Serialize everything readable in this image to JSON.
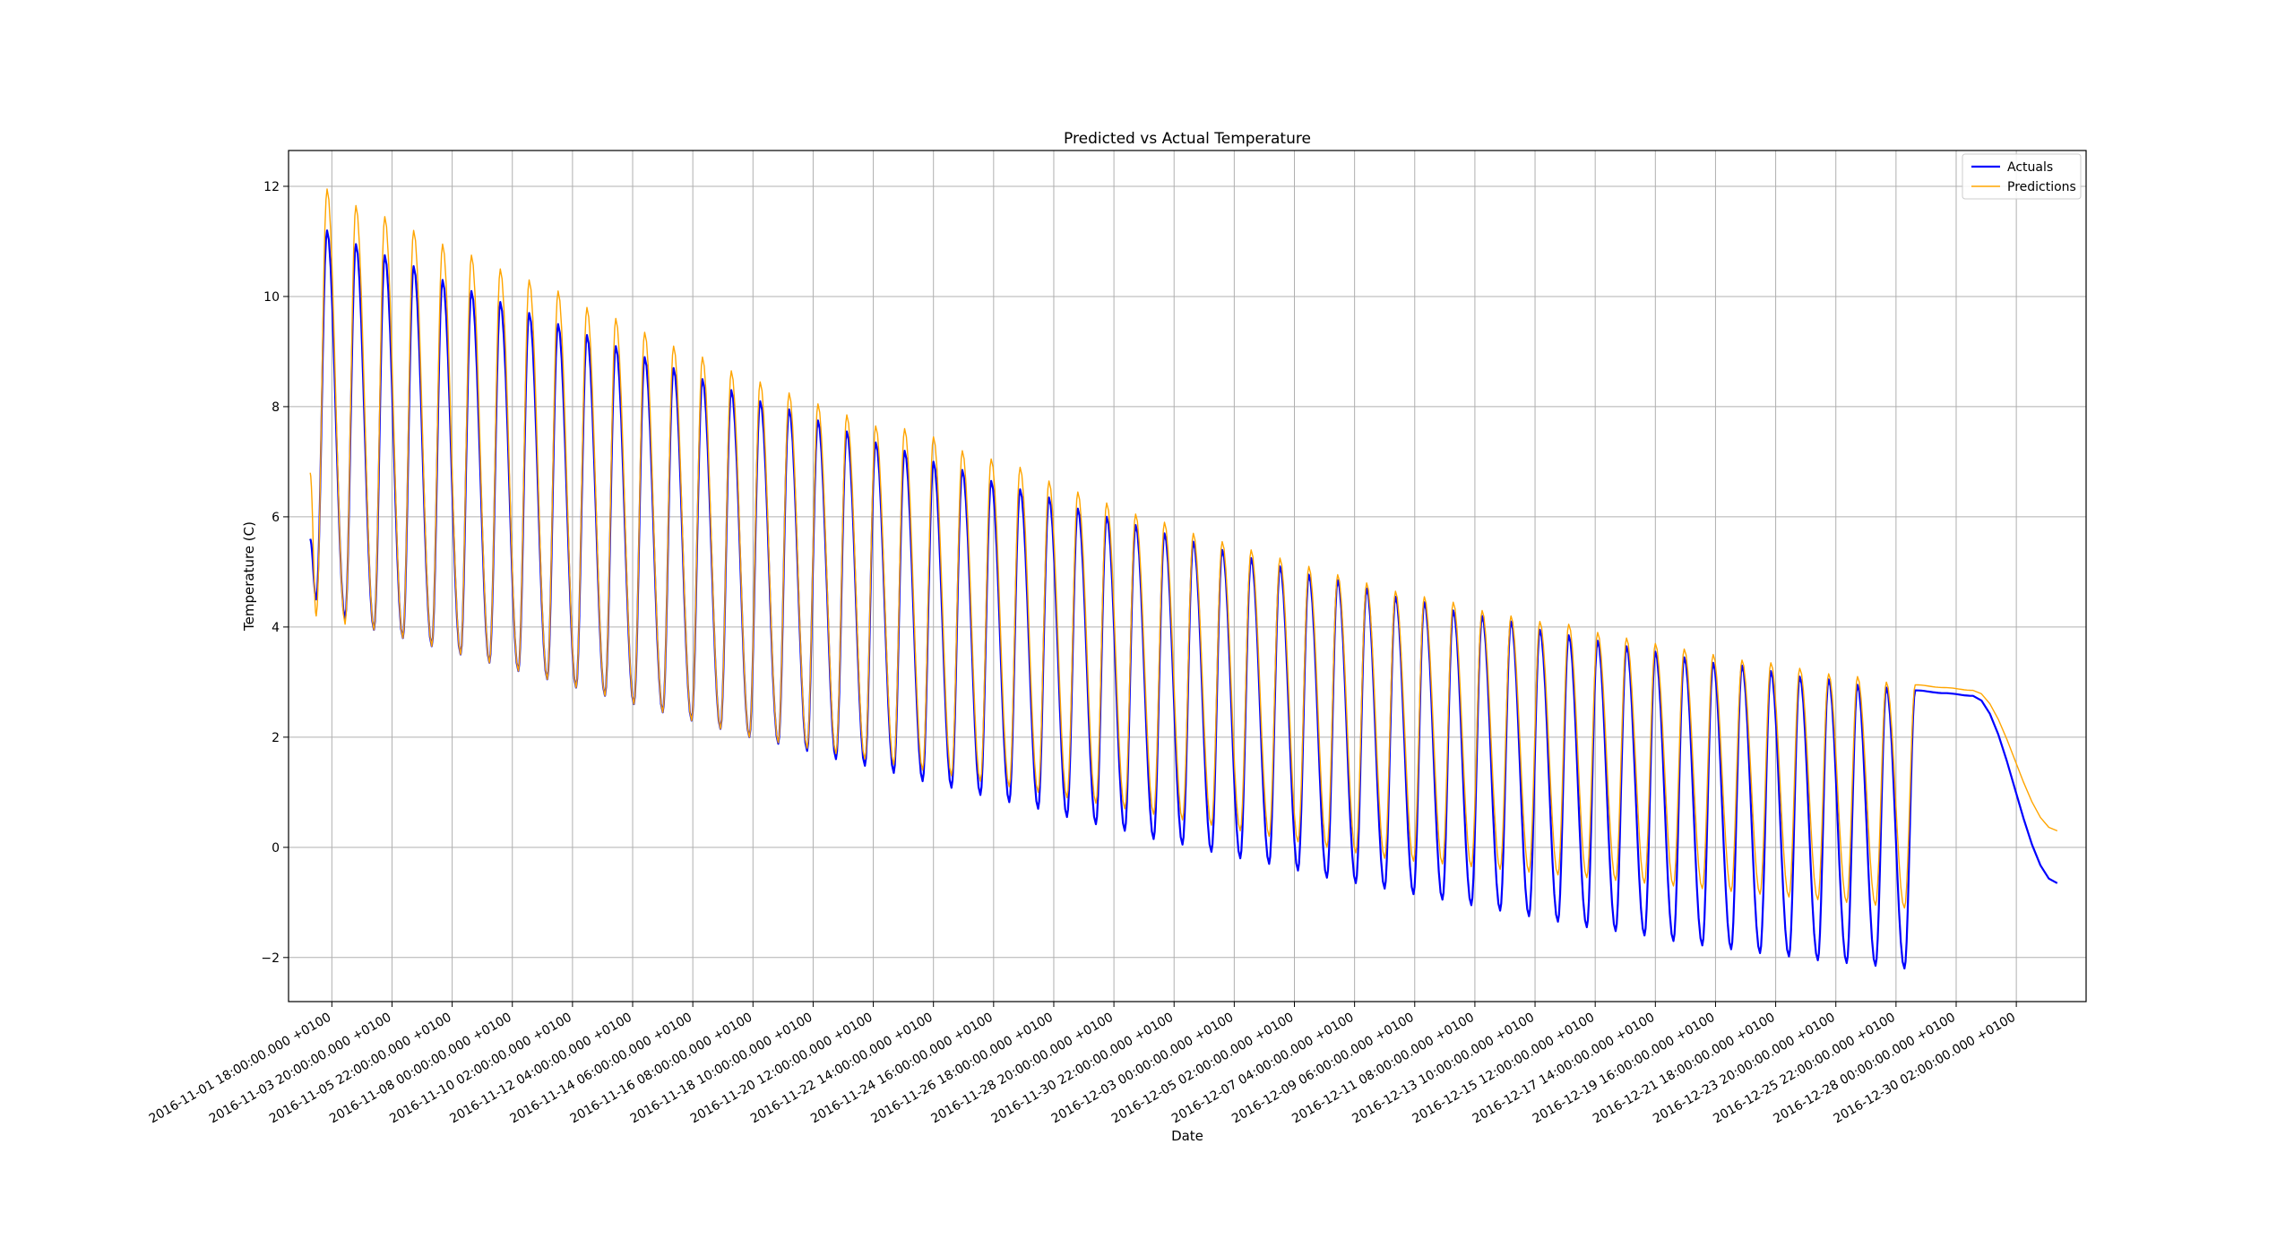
{
  "chart_data": {
    "type": "line",
    "title": "Predicted vs Actual Temperature",
    "xlabel": "Date",
    "ylabel": "Temperature (C)",
    "ylim": [
      -2.8,
      12.65
    ],
    "yticks": [
      -2,
      0,
      2,
      4,
      6,
      8,
      10,
      12
    ],
    "grid": true,
    "legend": "top-right",
    "xlim": [
      "2016-10-31 06:00",
      "2017-01-01 12:00"
    ],
    "x_start": "2016-11-01 00:00",
    "x_end": "2016-12-31 12:00",
    "x_ticks": [
      {
        "date": "2016-11-01 18:00",
        "label": "2016-11-01 18:00:00.000 +0100"
      },
      {
        "date": "2016-11-03 20:00",
        "label": "2016-11-03 20:00:00.000 +0100"
      },
      {
        "date": "2016-11-05 22:00",
        "label": "2016-11-05 22:00:00.000 +0100"
      },
      {
        "date": "2016-11-08 00:00",
        "label": "2016-11-08 00:00:00.000 +0100"
      },
      {
        "date": "2016-11-10 02:00",
        "label": "2016-11-10 02:00:00.000 +0100"
      },
      {
        "date": "2016-11-12 04:00",
        "label": "2016-11-12 04:00:00.000 +0100"
      },
      {
        "date": "2016-11-14 06:00",
        "label": "2016-11-14 06:00:00.000 +0100"
      },
      {
        "date": "2016-11-16 08:00",
        "label": "2016-11-16 08:00:00.000 +0100"
      },
      {
        "date": "2016-11-18 10:00",
        "label": "2016-11-18 10:00:00.000 +0100"
      },
      {
        "date": "2016-11-20 12:00",
        "label": "2016-11-20 12:00:00.000 +0100"
      },
      {
        "date": "2016-11-22 14:00",
        "label": "2016-11-22 14:00:00.000 +0100"
      },
      {
        "date": "2016-11-24 16:00",
        "label": "2016-11-24 16:00:00.000 +0100"
      },
      {
        "date": "2016-11-26 18:00",
        "label": "2016-11-26 18:00:00.000 +0100"
      },
      {
        "date": "2016-11-28 20:00",
        "label": "2016-11-28 20:00:00.000 +0100"
      },
      {
        "date": "2016-11-30 22:00",
        "label": "2016-11-30 22:00:00.000 +0100"
      },
      {
        "date": "2016-12-03 00:00",
        "label": "2016-12-03 00:00:00.000 +0100"
      },
      {
        "date": "2016-12-05 02:00",
        "label": "2016-12-05 02:00:00.000 +0100"
      },
      {
        "date": "2016-12-07 04:00",
        "label": "2016-12-07 04:00:00.000 +0100"
      },
      {
        "date": "2016-12-09 06:00",
        "label": "2016-12-09 06:00:00.000 +0100"
      },
      {
        "date": "2016-12-11 08:00",
        "label": "2016-12-11 08:00:00.000 +0100"
      },
      {
        "date": "2016-12-13 10:00",
        "label": "2016-12-13 10:00:00.000 +0100"
      },
      {
        "date": "2016-12-15 12:00",
        "label": "2016-12-15 12:00:00.000 +0100"
      },
      {
        "date": "2016-12-17 14:00",
        "label": "2016-12-17 14:00:00.000 +0100"
      },
      {
        "date": "2016-12-19 16:00",
        "label": "2016-12-19 16:00:00.000 +0100"
      },
      {
        "date": "2016-12-21 18:00",
        "label": "2016-12-21 18:00:00.000 +0100"
      },
      {
        "date": "2016-12-23 20:00",
        "label": "2016-12-23 20:00:00.000 +0100"
      },
      {
        "date": "2016-12-25 22:00",
        "label": "2016-12-25 22:00:00.000 +0100"
      },
      {
        "date": "2016-12-28 00:00",
        "label": "2016-12-28 00:00:00.000 +0100"
      },
      {
        "date": "2016-12-30 02:00",
        "label": "2016-12-30 02:00:00.000 +0100"
      }
    ],
    "series": [
      {
        "name": "Actuals",
        "color": "#0000ff",
        "start": 5.6,
        "daily_peaks": [
          11.2,
          10.95,
          10.75,
          10.55,
          10.3,
          10.1,
          9.9,
          9.7,
          9.5,
          9.3,
          9.1,
          8.9,
          8.7,
          8.5,
          8.3,
          8.1,
          7.95,
          7.75,
          7.55,
          7.35,
          7.2,
          7.0,
          6.85,
          6.65,
          6.5,
          6.35,
          6.15,
          6.0,
          5.85,
          5.7,
          5.55,
          5.4,
          5.25,
          5.1,
          4.95,
          4.85,
          4.7,
          4.55,
          4.45,
          4.3,
          4.2,
          4.1,
          3.95,
          3.85,
          3.75,
          3.65,
          3.55,
          3.45,
          3.35,
          3.3,
          3.2,
          3.1,
          3.05,
          2.95,
          2.9,
          2.85,
          2.8,
          2.75
        ],
        "daily_troughs": [
          4.5,
          4.15,
          3.95,
          3.8,
          3.65,
          3.5,
          3.35,
          3.2,
          3.05,
          2.9,
          2.75,
          2.6,
          2.45,
          2.3,
          2.15,
          2.0,
          1.88,
          1.75,
          1.6,
          1.48,
          1.35,
          1.2,
          1.08,
          0.95,
          0.82,
          0.7,
          0.55,
          0.42,
          0.3,
          0.15,
          0.05,
          -0.08,
          -0.2,
          -0.3,
          -0.42,
          -0.55,
          -0.65,
          -0.75,
          -0.85,
          -0.95,
          -1.05,
          -1.15,
          -1.25,
          -1.35,
          -1.45,
          -1.52,
          -1.6,
          -1.7,
          -1.78,
          -1.85,
          -1.92,
          -1.98,
          -2.05,
          -2.1,
          -2.15,
          -2.2
        ],
        "end": -0.65
      },
      {
        "name": "Predictions",
        "color": "#ffa500",
        "start": 6.8,
        "daily_peaks": [
          11.95,
          11.65,
          11.45,
          11.2,
          10.95,
          10.75,
          10.5,
          10.3,
          10.1,
          9.8,
          9.6,
          9.35,
          9.1,
          8.9,
          8.65,
          8.45,
          8.25,
          8.05,
          7.85,
          7.65,
          7.6,
          7.45,
          7.2,
          7.05,
          6.9,
          6.65,
          6.45,
          6.25,
          6.05,
          5.9,
          5.7,
          5.55,
          5.4,
          5.25,
          5.1,
          4.95,
          4.8,
          4.65,
          4.55,
          4.45,
          4.3,
          4.2,
          4.1,
          4.05,
          3.9,
          3.8,
          3.7,
          3.6,
          3.5,
          3.4,
          3.35,
          3.25,
          3.15,
          3.1,
          3.0,
          2.95,
          2.9,
          2.85
        ],
        "daily_troughs": [
          4.2,
          4.05,
          3.95,
          3.8,
          3.65,
          3.5,
          3.35,
          3.2,
          3.05,
          2.9,
          2.75,
          2.6,
          2.45,
          2.3,
          2.15,
          2.0,
          1.9,
          1.8,
          1.7,
          1.6,
          1.5,
          1.4,
          1.3,
          1.2,
          1.1,
          1.0,
          0.9,
          0.8,
          0.7,
          0.6,
          0.5,
          0.4,
          0.3,
          0.2,
          0.1,
          0.0,
          -0.1,
          -0.2,
          -0.25,
          -0.3,
          -0.35,
          -0.4,
          -0.45,
          -0.5,
          -0.55,
          -0.6,
          -0.65,
          -0.7,
          -0.75,
          -0.8,
          -0.85,
          -0.9,
          -0.95,
          -1.0,
          -1.05,
          -1.1
        ],
        "end": 0.3
      }
    ]
  }
}
